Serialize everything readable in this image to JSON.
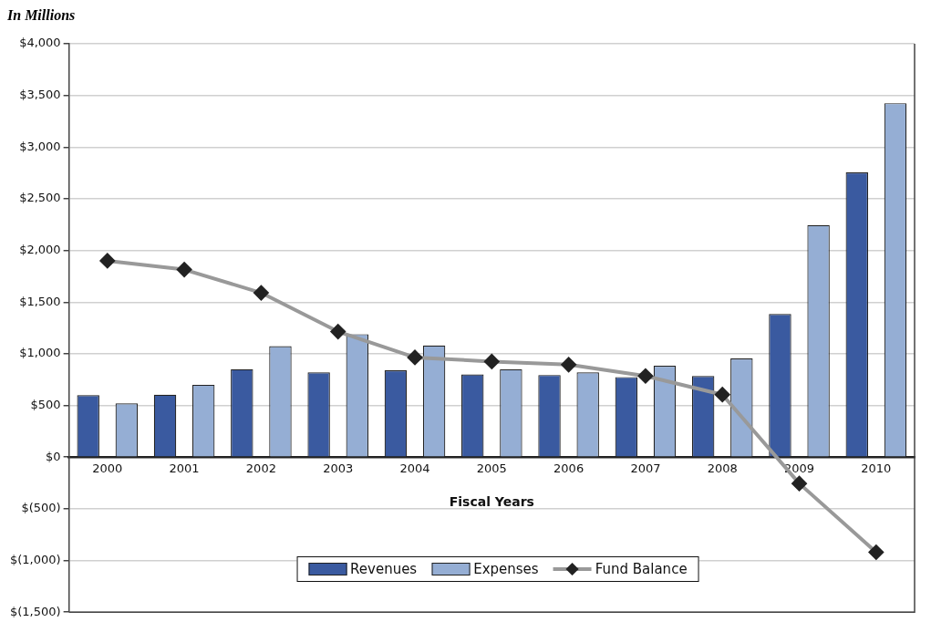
{
  "chart_data": {
    "type": "bar",
    "ylabel": "In Millions",
    "xlabel": "Fiscal Years",
    "categories": [
      "2000",
      "2001",
      "2002",
      "2003",
      "2004",
      "2005",
      "2006",
      "2007",
      "2008",
      "2009",
      "2010"
    ],
    "series": [
      {
        "name": "Revenues",
        "color": "#3a5aa0",
        "values": [
          600,
          605,
          850,
          820,
          840,
          800,
          795,
          775,
          785,
          1385,
          2755
        ]
      },
      {
        "name": "Expenses",
        "color": "#95aed4",
        "values": [
          520,
          700,
          1075,
          1190,
          1080,
          850,
          820,
          885,
          955,
          2245,
          3425
        ]
      },
      {
        "name": "Fund Balance",
        "type": "line",
        "color": "#999999",
        "marker": "diamond",
        "values": [
          1900,
          1815,
          1590,
          1215,
          965,
          925,
          895,
          785,
          605,
          -255,
          -920
        ]
      }
    ],
    "ylim": [
      -1500,
      4000
    ],
    "yticks": [
      {
        "value": -1500,
        "label": "$(1,500)"
      },
      {
        "value": -1000,
        "label": "$(1,000)"
      },
      {
        "value": -500,
        "label": "$(500)"
      },
      {
        "value": 0,
        "label": "$0"
      },
      {
        "value": 500,
        "label": "$500"
      },
      {
        "value": 1000,
        "label": "$1,000"
      },
      {
        "value": 1500,
        "label": "$1,500"
      },
      {
        "value": 2000,
        "label": "$2,000"
      },
      {
        "value": 2500,
        "label": "$2,500"
      },
      {
        "value": 3000,
        "label": "$3,000"
      },
      {
        "value": 3500,
        "label": "$3,500"
      },
      {
        "value": 4000,
        "label": "$4,000"
      }
    ],
    "grid": "y",
    "legend": "bottom"
  }
}
